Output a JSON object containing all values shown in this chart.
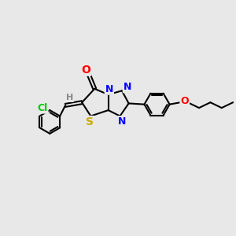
{
  "background_color": "#e8e8e8",
  "bond_color": "#000000",
  "bond_width": 1.5,
  "atom_colors": {
    "O": "#ff0000",
    "N": "#0000ff",
    "S": "#ccaa00",
    "Cl": "#00cc00",
    "H": "#888888",
    "C": "#000000"
  },
  "font_size": 9,
  "fig_width": 3.0,
  "fig_height": 3.0,
  "dpi": 100
}
